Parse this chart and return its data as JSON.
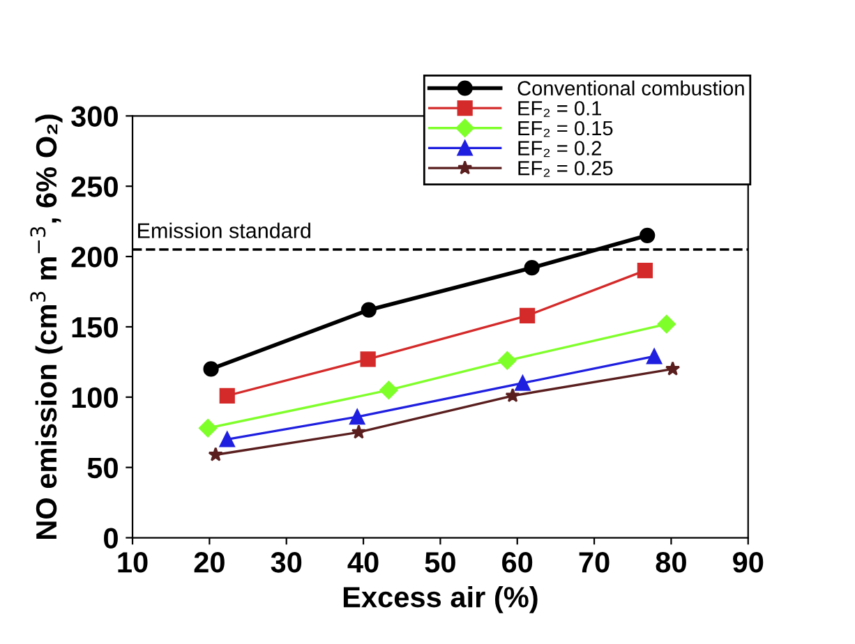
{
  "chart_data": {
    "type": "line",
    "xlabel": "Excess air (%)",
    "ylabel": "NO emission (cm$^{3}$ m$^{−3}$, 6% O₂)",
    "xlim": [
      10,
      90
    ],
    "xticks": [
      10,
      20,
      30,
      40,
      50,
      60,
      70,
      80,
      90
    ],
    "ylim": [
      0,
      300
    ],
    "yticks": [
      0,
      50,
      100,
      150,
      200,
      250,
      300
    ],
    "grid": false,
    "legend": "top right",
    "line_style": "solid",
    "series": [
      {
        "name": "Conventional combustion",
        "color": "#000000",
        "marker": "circle",
        "x": [
          20.2,
          40.7,
          61.9,
          76.9
        ],
        "values": [
          120,
          162,
          192,
          215
        ]
      },
      {
        "name": "EF₂ = 0.1",
        "color": "#d42a2a",
        "marker": "square",
        "x": [
          22.3,
          40.6,
          61.3,
          76.6
        ],
        "values": [
          101,
          127,
          158,
          190
        ]
      },
      {
        "name": "EF₂ = 0.15",
        "color": "#7fff2a",
        "marker": "diamond",
        "x": [
          19.8,
          43.3,
          58.7,
          79.4
        ],
        "values": [
          78,
          105,
          126,
          152
        ]
      },
      {
        "name": "EF₂ = 0.2",
        "color": "#1f1fe0",
        "marker": "triangle",
        "x": [
          22.3,
          39.2,
          60.7,
          77.8
        ],
        "values": [
          70,
          86,
          110,
          129
        ]
      },
      {
        "name": "EF₂ = 0.25",
        "color": "#5a1e1e",
        "marker": "star",
        "x": [
          20.8,
          39.4,
          59.4,
          80.2
        ],
        "values": [
          59,
          75,
          101,
          120
        ]
      }
    ],
    "ref_lines": [
      {
        "axis": "y",
        "value": 205,
        "label": "Emission standard",
        "color": "#000000",
        "line_style": "dashed"
      }
    ]
  }
}
